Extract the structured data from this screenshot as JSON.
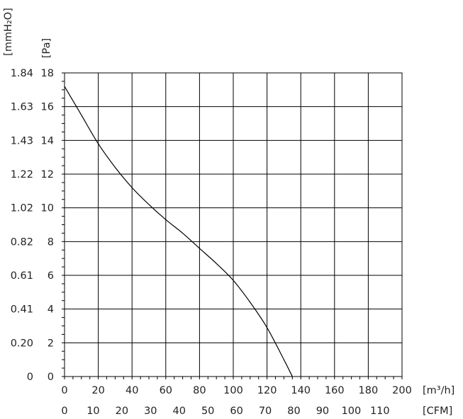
{
  "chart_data": {
    "type": "line",
    "title": "",
    "x_primary": {
      "unit_label": "[m³/h]",
      "ticks": [
        0,
        20,
        40,
        60,
        80,
        100,
        120,
        140,
        160,
        180,
        200
      ],
      "range": [
        0,
        200
      ]
    },
    "x_secondary": {
      "unit_label": "[CFM]",
      "ticks": [
        0,
        10,
        20,
        30,
        40,
        50,
        60,
        70,
        80,
        90,
        100,
        110
      ]
    },
    "y_primary": {
      "unit_label": "[Pa]",
      "ticks": [
        0,
        2,
        4,
        6,
        8,
        10,
        12,
        14,
        16,
        18
      ],
      "range": [
        0,
        18
      ]
    },
    "y_secondary": {
      "unit_label": "[mmH₂O]",
      "tick_labels": [
        "0",
        "0.20",
        "0.41",
        "0.61",
        "0.82",
        "1.02",
        "1.22",
        "1.43",
        "1.63",
        "1.84"
      ]
    },
    "grid": true,
    "series": [
      {
        "x": [
          0,
          10,
          20,
          30,
          40,
          50,
          60,
          70,
          80,
          90,
          100,
          110,
          120,
          130,
          135
        ],
        "y": [
          17.2,
          15.5,
          13.8,
          12.4,
          11.2,
          10.2,
          9.3,
          8.5,
          7.6,
          6.7,
          5.7,
          4.4,
          2.9,
          1.0,
          0
        ]
      }
    ]
  }
}
